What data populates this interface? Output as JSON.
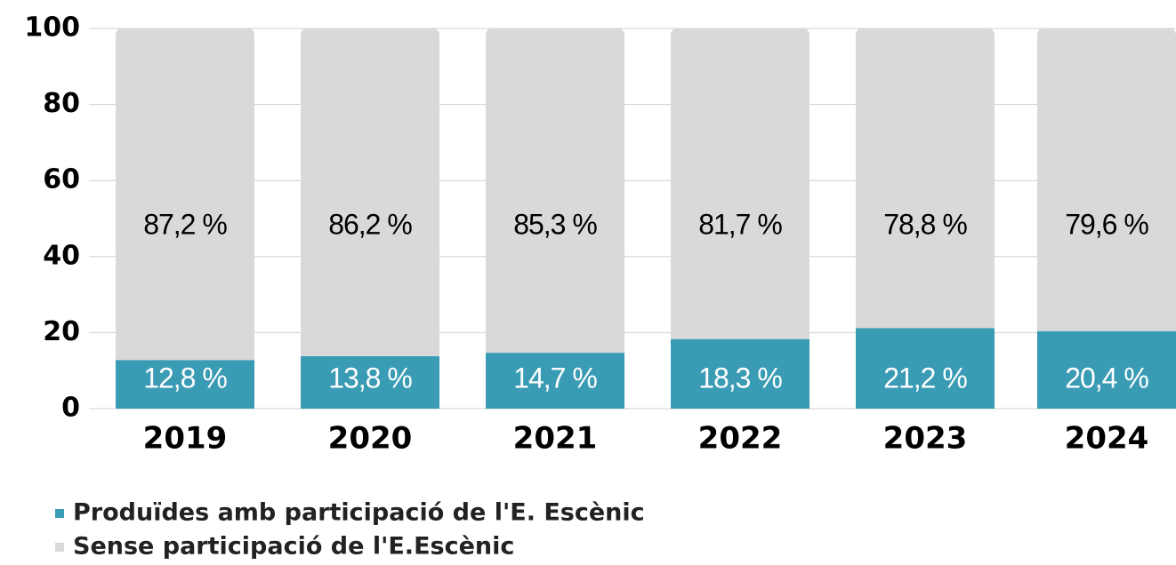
{
  "chart_data": {
    "type": "stacked_bar",
    "categories": [
      "2019",
      "2020",
      "2021",
      "2022",
      "2023",
      "2024"
    ],
    "series": [
      {
        "name": "Produïdes amb participació de l'E. Escènic",
        "color": "#3a9bb5",
        "values": [
          12.8,
          13.8,
          14.7,
          18.3,
          21.2,
          20.4
        ],
        "value_labels": [
          "12,8 %",
          "13,8 %",
          "14,7 %",
          "18,3 %",
          "21,2 %",
          "20,4 %"
        ]
      },
      {
        "name": "Sense participació de l'E.Escènic",
        "color": "#d9d9d9",
        "values": [
          87.2,
          86.2,
          85.3,
          81.7,
          78.8,
          79.6
        ],
        "value_labels": [
          "87,2 %",
          "86,2 %",
          "85,3 %",
          "81,7 %",
          "78,8 %",
          "79,6 %"
        ]
      }
    ],
    "ylim": [
      0,
      100
    ],
    "yticks": [
      0,
      20,
      40,
      60,
      80,
      100
    ],
    "grid": true
  }
}
